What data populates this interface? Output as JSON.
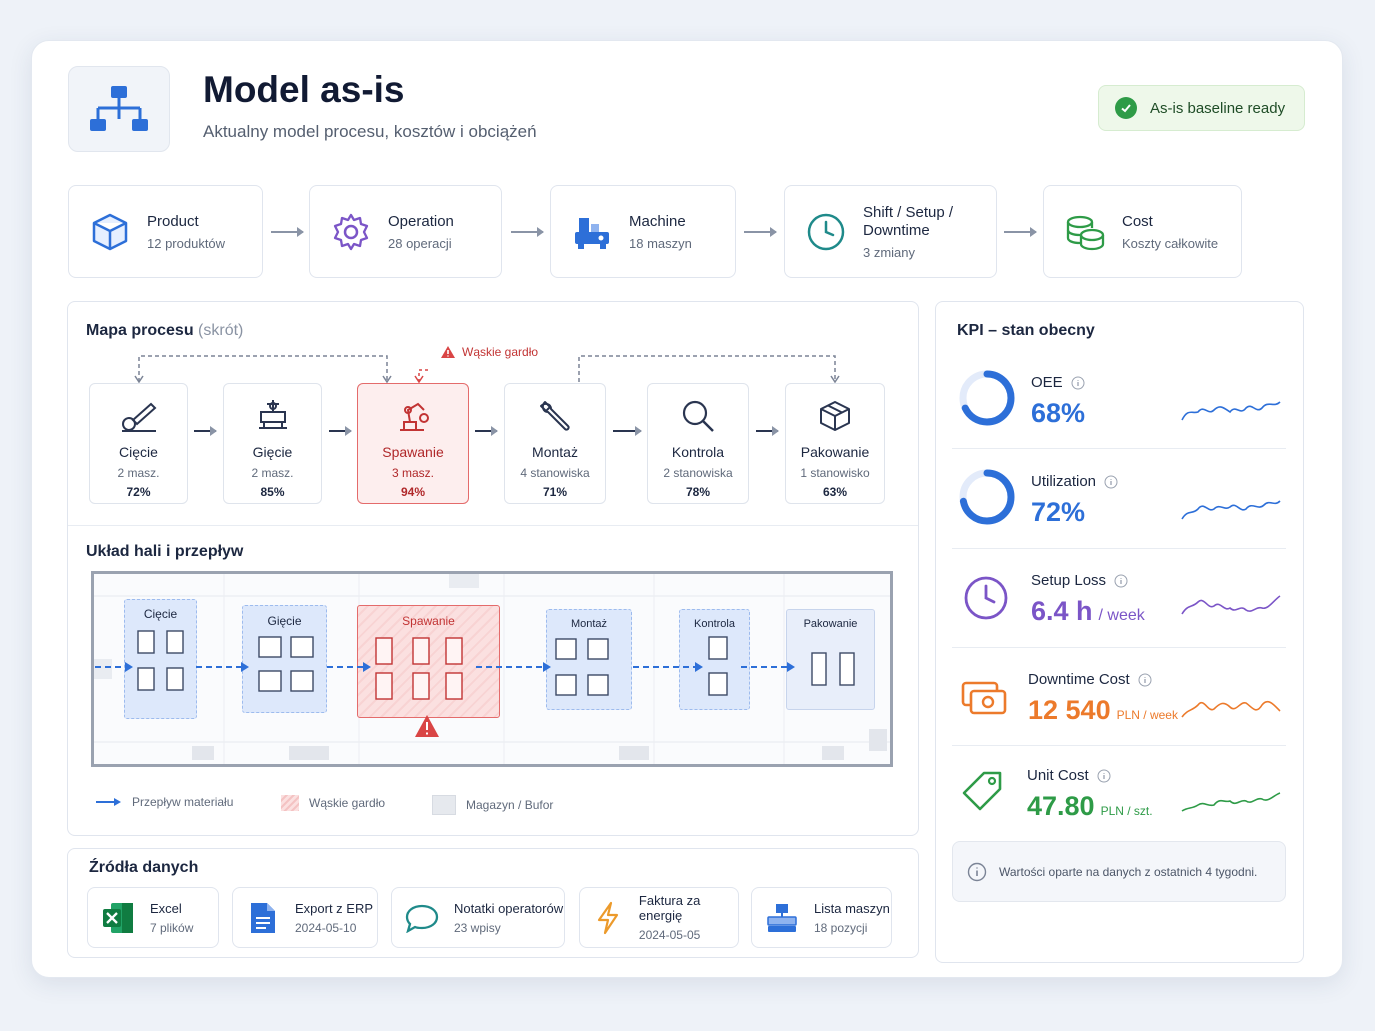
{
  "header": {
    "title": "Model as-is",
    "subtitle": "Aktualny model procesu, kosztów i obciążeń",
    "badge": "As-is baseline ready"
  },
  "model_chain": [
    {
      "label": "Product",
      "sub": "12 produktów",
      "icon": "cube-icon"
    },
    {
      "label": "Operation",
      "sub": "28 operacji",
      "icon": "gear-icon"
    },
    {
      "label": "Machine",
      "sub": "18 maszyn",
      "icon": "machine-icon"
    },
    {
      "label": "Shift / Setup / Downtime",
      "sub": "3 zmiany",
      "icon": "clock-icon"
    },
    {
      "label": "Cost",
      "sub": "Koszty całkowite",
      "icon": "coins-icon"
    }
  ],
  "process_map": {
    "title": "Mapa procesu",
    "title_note": "(skrót)",
    "bottleneck_label": "Wąskie gardło",
    "steps": [
      {
        "name": "Cięcie",
        "machines": "2 masz.",
        "load": "72%"
      },
      {
        "name": "Gięcie",
        "machines": "2 masz.",
        "load": "85%"
      },
      {
        "name": "Spawanie",
        "machines": "3 masz.",
        "load": "94%"
      },
      {
        "name": "Montaż",
        "machines": "4 stanowiska",
        "load": "71%"
      },
      {
        "name": "Kontrola",
        "machines": "2 stanowiska",
        "load": "78%"
      },
      {
        "name": "Pakowanie",
        "machines": "1 stanowisko",
        "load": "63%"
      }
    ]
  },
  "layout": {
    "title": "Układ hali i przepływ",
    "zones": [
      "Cięcie",
      "Gięcie",
      "Spawanie",
      "Montaż",
      "Kontrola",
      "Pakowanie"
    ],
    "legend": {
      "flow": "Przepływ materiału",
      "bottleneck": "Wąskie gardło",
      "buffer": "Magazyn / Bufor"
    }
  },
  "sources": {
    "title": "Źródła danych",
    "items": [
      {
        "label": "Excel",
        "sub": "7 plików"
      },
      {
        "label": "Export z ERP",
        "sub": "2024-05-10"
      },
      {
        "label": "Notatki operatorów",
        "sub": "23 wpisy"
      },
      {
        "label": "Faktura za energię",
        "sub": "2024-05-05"
      },
      {
        "label": "Lista maszyn",
        "sub": "18 pozycji"
      }
    ]
  },
  "kpi": {
    "title": "KPI – stan obecny",
    "items": [
      {
        "label": "OEE",
        "value": "68%",
        "unit": "",
        "color": "#2d6fd8",
        "ring": 0.68
      },
      {
        "label": "Utilization",
        "value": "72%",
        "unit": "",
        "color": "#2d6fd8",
        "ring": 0.72
      },
      {
        "label": "Setup Loss",
        "value": "6.4 h",
        "unit": "/ week",
        "color": "#7b55c7"
      },
      {
        "label": "Downtime Cost",
        "value": "12 540",
        "unit": "PLN / week",
        "color": "#ec7a2b"
      },
      {
        "label": "Unit Cost",
        "value": "47.80",
        "unit": "PLN / szt.",
        "color": "#2e9b47"
      }
    ],
    "note": "Wartości oparte na danych z ostatnich 4 tygodni."
  }
}
